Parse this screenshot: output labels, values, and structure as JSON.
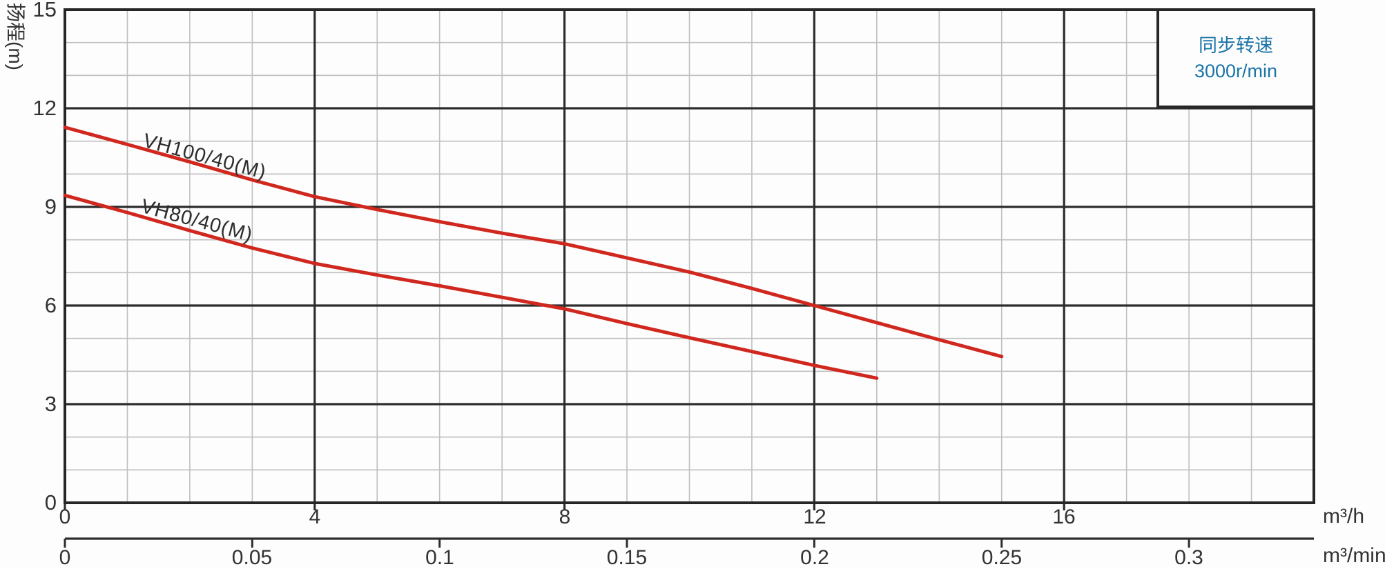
{
  "legend": {
    "line1": "同步转速",
    "line2": "3000r/min",
    "text_color": "#1a74a8"
  },
  "colors": {
    "curve_red": "#d0271e",
    "major_grid": "#2d2d2d",
    "minor_grid": "#bfbfbf",
    "frame": "#262626",
    "tick_text": "#333333"
  },
  "chart_data": {
    "type": "line",
    "title": "",
    "ylabel": "扬程(m)",
    "xlabel_primary": "m³/h",
    "xlabel_secondary": "m³/min",
    "x_range_m3h": [
      0,
      20
    ],
    "x_major_ticks_m3h": [
      0,
      4,
      8,
      12,
      16
    ],
    "x_minor_step_m3h": 1,
    "x_secondary_ticks_m3min": [
      0,
      0.05,
      0.1,
      0.15,
      0.2,
      0.25,
      0.3
    ],
    "y_range_m": [
      0,
      15
    ],
    "y_major_ticks": [
      0,
      3,
      6,
      9,
      12,
      15
    ],
    "y_minor_step": 1,
    "grid": true,
    "legend_position": "top-right",
    "annotation": "同步转速 3000r/min",
    "series": [
      {
        "name": "VH100/40(M)",
        "color": "#d0271e",
        "points_m3h_vs_m": [
          [
            0,
            11.42
          ],
          [
            1,
            10.9
          ],
          [
            2,
            10.37
          ],
          [
            3,
            9.82
          ],
          [
            4,
            9.31
          ],
          [
            5,
            8.92
          ],
          [
            6,
            8.55
          ],
          [
            7,
            8.2
          ],
          [
            8,
            7.88
          ],
          [
            9,
            7.45
          ],
          [
            10,
            7.02
          ],
          [
            11,
            6.52
          ],
          [
            12,
            6.0
          ],
          [
            13,
            5.48
          ],
          [
            14,
            4.96
          ],
          [
            15,
            4.45
          ]
        ]
      },
      {
        "name": "VH80/40(M)",
        "color": "#d0271e",
        "points_m3h_vs_m": [
          [
            0,
            9.35
          ],
          [
            1,
            8.83
          ],
          [
            2,
            8.28
          ],
          [
            3,
            7.75
          ],
          [
            4,
            7.28
          ],
          [
            5,
            6.93
          ],
          [
            6,
            6.6
          ],
          [
            7,
            6.25
          ],
          [
            8,
            5.9
          ],
          [
            9,
            5.45
          ],
          [
            10,
            5.02
          ],
          [
            11,
            4.6
          ],
          [
            12,
            4.18
          ],
          [
            13,
            3.79
          ]
        ]
      }
    ]
  }
}
